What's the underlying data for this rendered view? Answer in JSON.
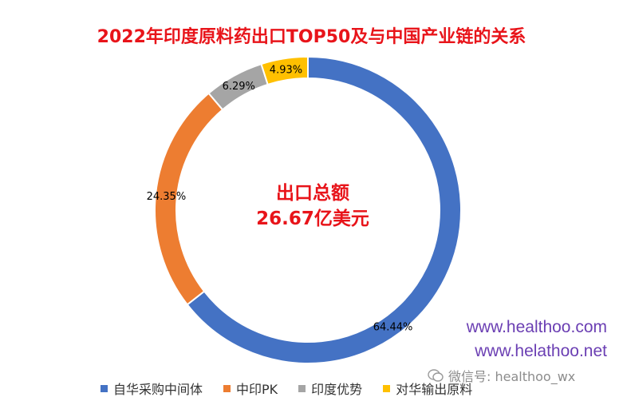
{
  "chart_data": {
    "type": "pie",
    "title": "2022年印度原料药出口TOP50及与中国产业链的关系",
    "center_label": "出口总额",
    "center_value": "26.67亿美元",
    "categories": [
      "自华采购中间体",
      "中印PK",
      "印度优势",
      "对华输出原料"
    ],
    "values": [
      64.44,
      24.35,
      6.29,
      4.93
    ],
    "value_labels": [
      "64.44%",
      "24.35%",
      "6.29%",
      "4.93%"
    ],
    "colors": [
      "#4472c4",
      "#ed7d31",
      "#a5a5a5",
      "#ffc000"
    ],
    "legend_position": "bottom",
    "donut": true
  },
  "watermark": {
    "line1": "www.healthoo.com",
    "line2": "www.helathoo.net",
    "wechat": "微信号: healthoo_wx"
  }
}
